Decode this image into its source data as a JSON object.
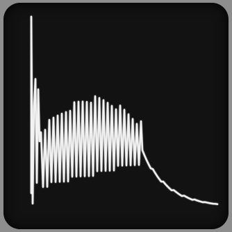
{
  "scene": {
    "description_colors": {
      "bezel": "#8e8e8e",
      "screen": "#121212",
      "trace": "#f2f2f2"
    },
    "icon": "oscilloscope-trace"
  }
}
